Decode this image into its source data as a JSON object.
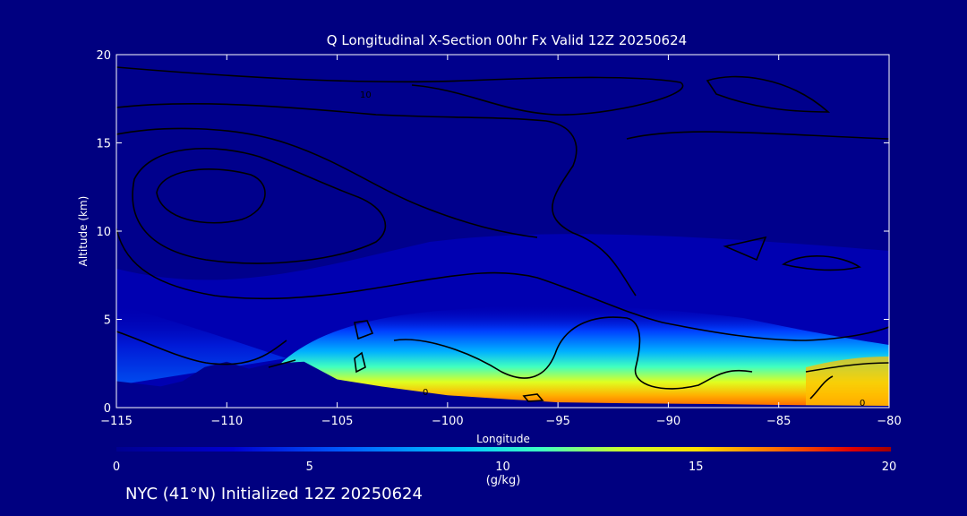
{
  "chart_data": {
    "type": "heatmap",
    "title": "Q Longitudinal X-Section 00hr  Fx Valid 12Z 20250624",
    "xlabel": "Longitude",
    "ylabel": "Altitude (km)",
    "xlim": [
      -115,
      -80
    ],
    "ylim": [
      0,
      20
    ],
    "x_ticks": [
      -115,
      -110,
      -105,
      -100,
      -95,
      -90,
      -85,
      -80
    ],
    "x_tick_labels": [
      "−115",
      "−110",
      "−105",
      "−100",
      "−95",
      "−90",
      "−85",
      "−80"
    ],
    "y_ticks": [
      0,
      5,
      10,
      15,
      20
    ],
    "y_tick_labels": [
      "0",
      "5",
      "10",
      "15",
      "20"
    ],
    "colorbar": {
      "min": 0,
      "max": 20,
      "unit": "(g/kg)",
      "ticks": [
        0,
        5,
        10,
        15,
        20
      ],
      "tick_labels": [
        "0",
        "5",
        "10",
        "15",
        "20"
      ],
      "colors": [
        "#000090",
        "#0000cc",
        "#0040ff",
        "#0090ff",
        "#00e0ff",
        "#40ffb0",
        "#c0ff40",
        "#ffe000",
        "#ff8000",
        "#ff2000",
        "#a00000"
      ]
    },
    "terrain_km": [
      {
        "lon": -115,
        "alt": 1.5
      },
      {
        "lon": -113,
        "alt": 1.2
      },
      {
        "lon": -112,
        "alt": 1.5
      },
      {
        "lon": -111,
        "alt": 2.3
      },
      {
        "lon": -110,
        "alt": 2.6
      },
      {
        "lon": -109,
        "alt": 2.2
      },
      {
        "lon": -108,
        "alt": 2.5
      },
      {
        "lon": -106.5,
        "alt": 2.6
      },
      {
        "lon": -105,
        "alt": 1.6
      },
      {
        "lon": -103,
        "alt": 1.2
      },
      {
        "lon": -100,
        "alt": 0.7
      },
      {
        "lon": -97,
        "alt": 0.45
      },
      {
        "lon": -95,
        "alt": 0.3
      },
      {
        "lon": -92,
        "alt": 0.25
      },
      {
        "lon": -88,
        "alt": 0.2
      },
      {
        "lon": -85,
        "alt": 0.15
      },
      {
        "lon": -80,
        "alt": 0.1
      }
    ],
    "contour_labels": [
      "10",
      "0"
    ]
  },
  "footer": {
    "text": "NYC (41°N) Initialized 12Z 20250624"
  }
}
